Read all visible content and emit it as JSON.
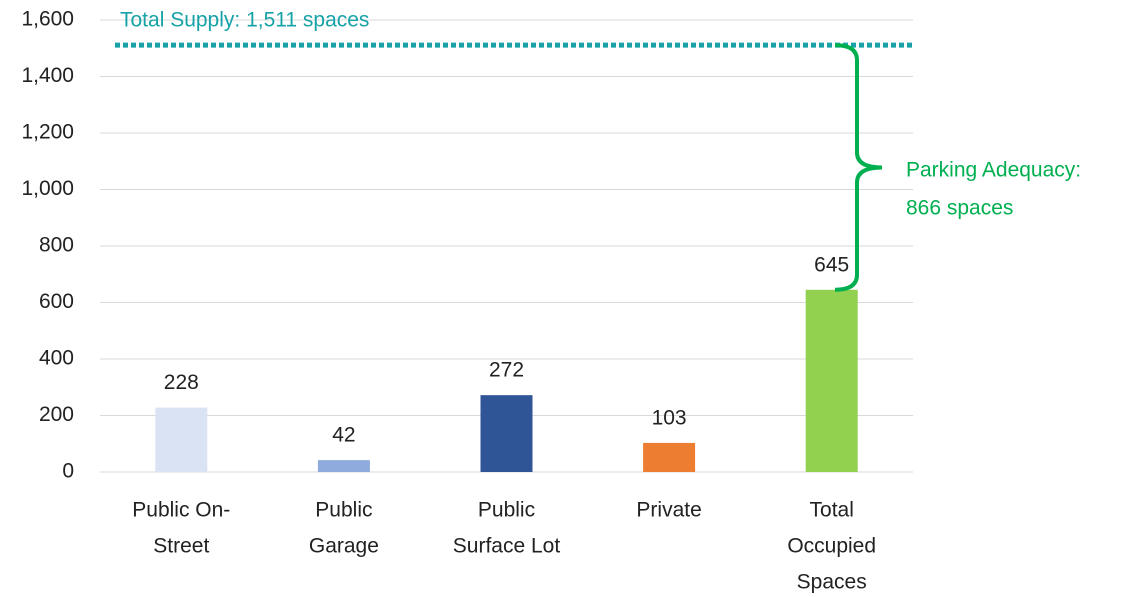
{
  "chart_data": {
    "type": "bar",
    "categories": [
      [
        "Public On-",
        "Street"
      ],
      [
        "Public",
        "Garage"
      ],
      [
        "Public",
        "Surface Lot"
      ],
      [
        "Private"
      ],
      [
        "Total",
        "Occupied",
        "Spaces"
      ]
    ],
    "values": [
      228,
      42,
      272,
      103,
      645
    ],
    "colors": [
      "#dae3f3",
      "#8faadc",
      "#2f5597",
      "#ed7d31",
      "#92d050"
    ],
    "ylim": [
      0,
      1600
    ],
    "yticks": [
      0,
      200,
      400,
      600,
      800,
      {
        "value": 1000,
        "label": "1,000"
      },
      {
        "value": 1200,
        "label": "1,200"
      },
      {
        "value": 1400,
        "label": "1,400"
      },
      {
        "value": 1600,
        "label": "1,600"
      }
    ],
    "grid": true,
    "annotations": {
      "supply": {
        "value": 1511,
        "label": "Total Supply: 1,511 spaces",
        "color": "#17a2a8"
      },
      "adequacy": {
        "value": 866,
        "label": [
          "Parking Adequacy:",
          "866 spaces"
        ],
        "color": "#00b050"
      }
    }
  }
}
